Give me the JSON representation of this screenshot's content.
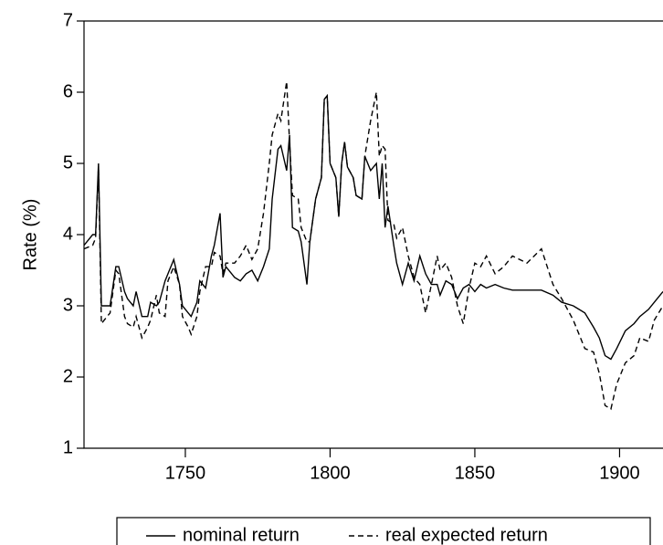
{
  "chart_data": {
    "type": "line",
    "y_label": "Rate (%)",
    "xlim": [
      1715,
      1915
    ],
    "ylim": [
      1,
      7
    ],
    "xticks": [
      1750,
      1800,
      1850,
      1900
    ],
    "yticks": [
      1,
      2,
      3,
      4,
      5,
      6,
      7
    ],
    "grid": false,
    "legend": "bottom",
    "x": [
      1715,
      1718,
      1719,
      1720,
      1721,
      1724,
      1726,
      1727,
      1729,
      1730,
      1732,
      1733,
      1735,
      1737,
      1738,
      1740,
      1741,
      1743,
      1744,
      1746,
      1748,
      1749,
      1751,
      1752,
      1754,
      1755,
      1757,
      1759,
      1760,
      1762,
      1763,
      1764,
      1767,
      1769,
      1771,
      1773,
      1775,
      1777,
      1779,
      1780,
      1782,
      1783,
      1785,
      1786,
      1787,
      1789,
      1790,
      1792,
      1793,
      1795,
      1797,
      1798,
      1799,
      1800,
      1802,
      1803,
      1804,
      1805,
      1806,
      1808,
      1809,
      1811,
      1812,
      1814,
      1816,
      1817,
      1818,
      1819,
      1820,
      1822,
      1823,
      1825,
      1827,
      1829,
      1831,
      1833,
      1835,
      1837,
      1838,
      1840,
      1842,
      1844,
      1846,
      1848,
      1850,
      1852,
      1854,
      1857,
      1860,
      1863,
      1868,
      1873,
      1877,
      1880,
      1884,
      1886,
      1888,
      1891,
      1893,
      1895,
      1897,
      1899,
      1902,
      1905,
      1907,
      1910,
      1912,
      1915
    ],
    "series": [
      {
        "name": "nominal return",
        "color": "#000000",
        "linestyle": "solid",
        "values": [
          3.85,
          4.0,
          4.0,
          5.0,
          3.0,
          3.0,
          3.55,
          3.55,
          3.2,
          3.1,
          3.0,
          3.2,
          2.85,
          2.85,
          3.05,
          3.0,
          3.05,
          3.35,
          3.45,
          3.65,
          3.3,
          3.0,
          2.9,
          2.85,
          3.05,
          3.35,
          3.25,
          3.7,
          3.85,
          4.3,
          3.4,
          3.55,
          3.4,
          3.35,
          3.45,
          3.5,
          3.35,
          3.55,
          3.8,
          4.5,
          5.2,
          5.25,
          4.9,
          5.4,
          4.1,
          4.05,
          3.9,
          3.3,
          3.9,
          4.5,
          4.8,
          5.9,
          5.95,
          5.0,
          4.8,
          4.25,
          5.0,
          5.3,
          4.95,
          4.8,
          4.55,
          4.5,
          5.1,
          4.9,
          5.0,
          4.5,
          5.0,
          4.1,
          4.4,
          3.85,
          3.6,
          3.3,
          3.6,
          3.35,
          3.7,
          3.45,
          3.3,
          3.3,
          3.15,
          3.35,
          3.3,
          3.1,
          3.25,
          3.3,
          3.2,
          3.3,
          3.25,
          3.3,
          3.25,
          3.22,
          3.22,
          3.22,
          3.15,
          3.05,
          3.0,
          2.95,
          2.9,
          2.7,
          2.55,
          2.3,
          2.25,
          2.4,
          2.65,
          2.75,
          2.85,
          2.95,
          3.05,
          3.2
        ]
      },
      {
        "name": "real expected return",
        "color": "#000000",
        "linestyle": "dashed",
        "values": [
          3.8,
          3.85,
          3.95,
          4.95,
          2.75,
          2.9,
          3.5,
          3.45,
          2.85,
          2.75,
          2.7,
          2.85,
          2.55,
          2.7,
          2.8,
          3.15,
          2.9,
          2.85,
          3.35,
          3.55,
          3.3,
          2.85,
          2.7,
          2.6,
          2.85,
          3.2,
          3.55,
          3.55,
          3.75,
          3.7,
          3.45,
          3.6,
          3.6,
          3.7,
          3.85,
          3.65,
          3.8,
          4.3,
          5.0,
          5.4,
          5.7,
          5.6,
          6.15,
          5.3,
          4.55,
          4.5,
          4.1,
          3.9,
          3.9,
          4.5,
          4.8,
          5.9,
          5.95,
          5.0,
          4.8,
          4.25,
          5.0,
          5.3,
          4.95,
          4.8,
          4.55,
          4.5,
          5.1,
          5.6,
          6.0,
          5.1,
          5.25,
          5.2,
          4.2,
          4.15,
          3.95,
          4.1,
          3.7,
          3.4,
          3.3,
          2.9,
          3.3,
          3.7,
          3.5,
          3.6,
          3.4,
          3.0,
          2.75,
          3.25,
          3.6,
          3.55,
          3.7,
          3.45,
          3.55,
          3.7,
          3.6,
          3.8,
          3.3,
          3.1,
          2.8,
          2.6,
          2.4,
          2.35,
          2.05,
          1.6,
          1.55,
          1.9,
          2.2,
          2.3,
          2.55,
          2.5,
          2.8,
          3.0
        ]
      }
    ]
  }
}
